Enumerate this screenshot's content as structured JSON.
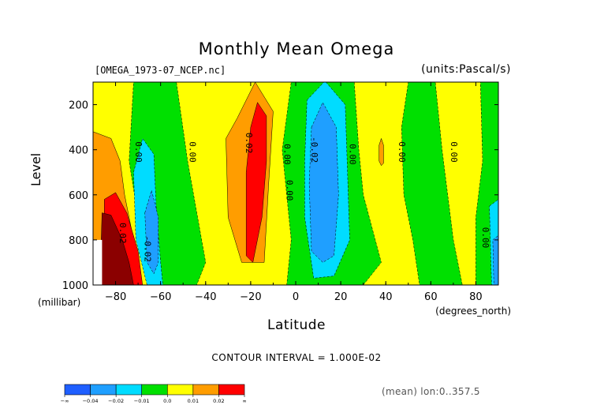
{
  "chart_data": {
    "type": "heatmap",
    "title": "Monthly Mean Omega",
    "file_label": "[OMEGA_1973-07_NCEP.nc]",
    "units_label": "(units:Pascal/s)",
    "ylabel": "Level",
    "ylabel_units": "(millibar)",
    "xlabel": "Latitude",
    "xlabel_units": "(degrees_north)",
    "xlim": [
      -90,
      90
    ],
    "ylim": [
      1000,
      100
    ],
    "x_ticks": [
      "-80",
      "-60",
      "-40",
      "-20",
      "0",
      "20",
      "40",
      "60",
      "80"
    ],
    "x_tick_values": [
      -80,
      -60,
      -40,
      -20,
      0,
      20,
      40,
      60,
      80
    ],
    "y_ticks": [
      "200",
      "400",
      "600",
      "800",
      "1000"
    ],
    "y_tick_values": [
      200,
      400,
      600,
      800,
      1000
    ],
    "contour_interval_text": "CONTOUR INTERVAL = 1.000E-02",
    "mean_text": "(mean) lon:0..357.5",
    "colorbar": {
      "labels": [
        "-∞",
        "-0.04",
        "-0.02",
        "-0.01",
        "0.0",
        "0.01",
        "0.02",
        "∞"
      ],
      "colors": [
        "#1f5fff",
        "#1f9fff",
        "#00dcff",
        "#00e000",
        "#ffff00",
        "#ff9d00",
        "#ff0000"
      ]
    },
    "contour_labels": [
      {
        "text": "0.00",
        "lat": -70,
        "lev": 410
      },
      {
        "text": "0.00",
        "lat": -46,
        "lev": 410
      },
      {
        "text": "0.02",
        "lat": -21,
        "lev": 370
      },
      {
        "text": "0.00",
        "lat": -4,
        "lev": 420
      },
      {
        "text": "0.00",
        "lat": -3,
        "lev": 580
      },
      {
        "text": "-0.02",
        "lat": 8,
        "lev": 400
      },
      {
        "text": "0.00",
        "lat": 25,
        "lev": 420
      },
      {
        "text": "0.00",
        "lat": 47,
        "lev": 410
      },
      {
        "text": "0.00",
        "lat": 70,
        "lev": 410
      },
      {
        "text": "0.00",
        "lat": 84,
        "lev": 790
      },
      {
        "text": "0.02",
        "lat": -77,
        "lev": 770
      },
      {
        "text": "-0.02",
        "lat": -66,
        "lev": 840
      }
    ],
    "regions": [
      {
        "level": "0.0 to 0.01",
        "color": "#ffff00",
        "poly": [
          [
            -90,
            100
          ],
          [
            90,
            100
          ],
          [
            90,
            1000
          ],
          [
            -90,
            1000
          ]
        ]
      },
      {
        "level": "-0.01 to 0.0",
        "color": "#00e000",
        "poly": [
          [
            -72,
            100
          ],
          [
            -53,
            100
          ],
          [
            -48,
            450
          ],
          [
            -40,
            900
          ],
          [
            -44,
            1000
          ],
          [
            -60,
            1000
          ],
          [
            -70,
            700
          ],
          [
            -74,
            450
          ]
        ]
      },
      {
        "level": "0.01 to 0.02",
        "color": "#ff9d00",
        "poly": [
          [
            -90,
            320
          ],
          [
            -82,
            350
          ],
          [
            -78,
            450
          ],
          [
            -76,
            600
          ],
          [
            -72,
            800
          ],
          [
            -69,
            1000
          ],
          [
            -90,
            1000
          ]
        ]
      },
      {
        "level": "0.01 to 0.02",
        "color": "#ff9d00",
        "poly": [
          [
            -26,
            260
          ],
          [
            -18,
            100
          ],
          [
            -10,
            230
          ],
          [
            -12,
            550
          ],
          [
            -14,
            900
          ],
          [
            -24,
            900
          ],
          [
            -30,
            700
          ],
          [
            -31,
            350
          ]
        ]
      },
      {
        "level": "0.02 and above",
        "color": "#ff0000",
        "poly": [
          [
            -19,
            900
          ],
          [
            -15,
            700
          ],
          [
            -13,
            450
          ],
          [
            -13,
            250
          ],
          [
            -17,
            190
          ],
          [
            -20,
            300
          ],
          [
            -22,
            500
          ],
          [
            -22,
            870
          ]
        ]
      },
      {
        "level": "0.02 and above",
        "color": "#ff0000",
        "poly": [
          [
            -85,
            620
          ],
          [
            -80,
            590
          ],
          [
            -75,
            680
          ],
          [
            -70,
            850
          ],
          [
            -68,
            1000
          ],
          [
            -82,
            1000
          ],
          [
            -85,
            900
          ]
        ]
      },
      {
        "level": "0.03 and above",
        "color": "#8b0000",
        "poly": [
          [
            -86,
            680
          ],
          [
            -82,
            690
          ],
          [
            -77,
            800
          ],
          [
            -74,
            900
          ],
          [
            -72,
            1000
          ],
          [
            -87,
            1000
          ]
        ]
      },
      {
        "level": "-0.01 to 0.0",
        "color": "#00e000",
        "poly": [
          [
            -2,
            100
          ],
          [
            26,
            100
          ],
          [
            28,
            400
          ],
          [
            30,
            600
          ],
          [
            38,
            900
          ],
          [
            30,
            1000
          ],
          [
            -4,
            1000
          ],
          [
            -2,
            800
          ],
          [
            -4,
            600
          ],
          [
            -6,
            400
          ]
        ]
      },
      {
        "level": "-0.02 to -0.01",
        "color": "#00dcff",
        "poly": [
          [
            5,
            180
          ],
          [
            13,
            95
          ],
          [
            22,
            200
          ],
          [
            23,
            500
          ],
          [
            24,
            800
          ],
          [
            17,
            960
          ],
          [
            8,
            970
          ],
          [
            4,
            700
          ],
          [
            4,
            450
          ]
        ]
      },
      {
        "level": "-0.04 to -0.02",
        "color": "#1f9fff",
        "poly": [
          [
            7,
            300
          ],
          [
            12,
            190
          ],
          [
            18,
            300
          ],
          [
            19,
            600
          ],
          [
            17,
            870
          ],
          [
            12,
            900
          ],
          [
            7,
            850
          ],
          [
            6,
            550
          ]
        ]
      },
      {
        "level": "-0.02 to -0.01",
        "color": "#00dcff",
        "poly": [
          [
            -72,
            500
          ],
          [
            -68,
            350
          ],
          [
            -63,
            420
          ],
          [
            -62,
            650
          ],
          [
            -60,
            900
          ],
          [
            -59,
            1000
          ],
          [
            -66,
            1000
          ],
          [
            -71,
            800
          ]
        ]
      },
      {
        "level": "-0.04 to -0.02",
        "color": "#1f9fff",
        "poly": [
          [
            -67,
            680
          ],
          [
            -64,
            580
          ],
          [
            -61,
            700
          ],
          [
            -61,
            900
          ],
          [
            -63,
            950
          ],
          [
            -66,
            900
          ]
        ]
      },
      {
        "level": "-0.01 to 0.0",
        "color": "#00e000",
        "poly": [
          [
            50,
            100
          ],
          [
            62,
            100
          ],
          [
            65,
            400
          ],
          [
            70,
            800
          ],
          [
            74,
            1000
          ],
          [
            55,
            1000
          ],
          [
            52,
            800
          ],
          [
            48,
            600
          ],
          [
            47,
            300
          ]
        ]
      },
      {
        "level": "-0.01 to 0.0",
        "color": "#00e000",
        "poly": [
          [
            82,
            100
          ],
          [
            90,
            100
          ],
          [
            90,
            1000
          ],
          [
            80,
            1000
          ],
          [
            80,
            700
          ],
          [
            83,
            450
          ]
        ]
      },
      {
        "level": "-0.02 to -0.01",
        "color": "#00dcff",
        "poly": [
          [
            86,
            650
          ],
          [
            90,
            620
          ],
          [
            90,
            1000
          ],
          [
            87,
            1000
          ]
        ]
      },
      {
        "level": "-0.04 to -0.02",
        "color": "#1f9fff",
        "poly": [
          [
            87.5,
            800
          ],
          [
            90,
            780
          ],
          [
            90,
            1000
          ],
          [
            88,
            1000
          ]
        ]
      },
      {
        "level": "0.01 to 0.02",
        "color": "#ff9d00",
        "poly": [
          [
            37,
            380
          ],
          [
            38,
            350
          ],
          [
            39,
            380
          ],
          [
            39,
            460
          ],
          [
            38,
            470
          ],
          [
            37,
            450
          ]
        ]
      }
    ]
  }
}
